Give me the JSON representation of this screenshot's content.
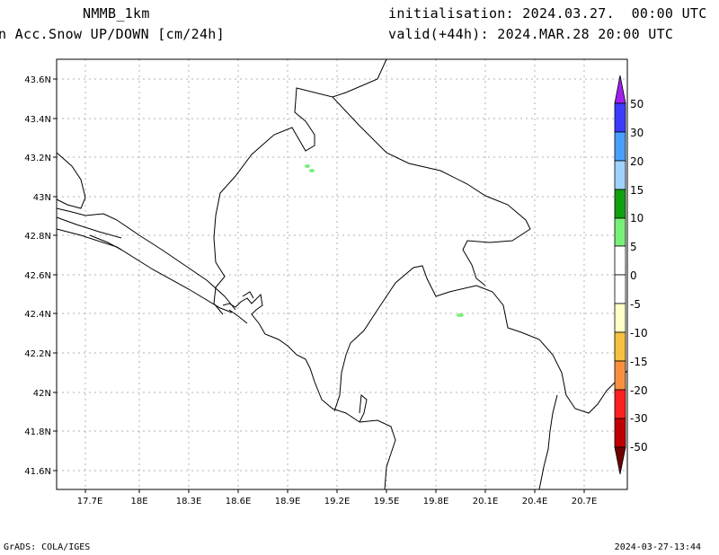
{
  "header": {
    "model": "NMMB_1km",
    "variable": "n Acc.Snow UP/DOWN [cm/24h]",
    "init": "initialisation: 2024.03.27.  00:00 UTC",
    "valid": "valid(+44h): 2024.MAR.28 20:00 UTC"
  },
  "footer": {
    "left": "GrADS: COLA/IGES",
    "right": "2024-03-27-13:44"
  },
  "map": {
    "lon_labels": [
      "17.7E",
      "18E",
      "18.3E",
      "18.6E",
      "18.9E",
      "19.2E",
      "19.5E",
      "19.8E",
      "20.1E",
      "20.4E",
      "20.7E"
    ],
    "lat_labels": [
      "43.6N",
      "43.4N",
      "43.2N",
      "43N",
      "42.8N",
      "42.6N",
      "42.4N",
      "42.2N",
      "42N",
      "41.8N",
      "41.6N"
    ],
    "grid": true
  },
  "colorbar": {
    "levels": [
      "50",
      "30",
      "20",
      "15",
      "10",
      "5",
      "0",
      "-5",
      "-10",
      "-15",
      "-20",
      "-30",
      "-50"
    ],
    "colors": [
      "#a020f0",
      "#3c3cff",
      "#4a9eff",
      "#a0d2ff",
      "#a0d2ff",
      "#10a010",
      "#78f078",
      "#ffffff",
      "#ffffff",
      "#ffffc8",
      "#f8c040",
      "#f89040",
      "#ff2020",
      "#d00000",
      "#a00000",
      "#700000"
    ]
  }
}
